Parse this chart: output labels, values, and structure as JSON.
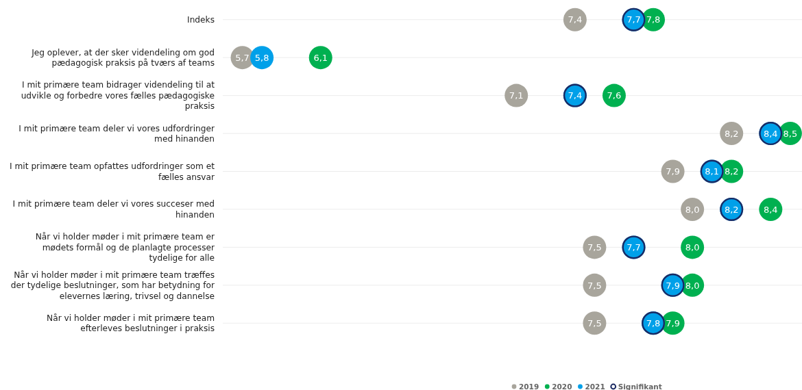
{
  "chart_data": {
    "type": "scatter",
    "orientation": "horizontal",
    "categories": [
      "Indeks",
      "Jeg oplever, at der sker videndeling om god pædagogisk praksis på tværs af teams",
      "I mit primære team bidrager videndeling til at udvikle og forbedre vores fælles pædagogiske praksis",
      "I mit primære team deler vi vores udfordringer med hinanden",
      "I mit primære team opfattes udfordringer som et fælles ansvar",
      "I mit primære team deler vi vores succeser med hinanden",
      "Når vi holder møder i mit primære team er mødets formål og de planlagte processer tydelige for alle",
      "Når vi holder møder i mit primære team træffes der tydelige beslutninger, som har betydning for elevernes læring, trivsel og dannelse",
      "Når vi holder møder i mit primære team efterleves beslutninger i praksis"
    ],
    "series": [
      {
        "name": "2019",
        "color": "#a8a59c",
        "values": [
          7.4,
          5.7,
          7.1,
          8.2,
          7.9,
          8.0,
          7.5,
          7.5,
          7.5
        ],
        "value_labels": [
          "7,4",
          "5,7",
          "7,1",
          "8,2",
          "7,9",
          "8,0",
          "7,5",
          "7,5",
          "7,5"
        ]
      },
      {
        "name": "2020",
        "color": "#00b050",
        "values": [
          7.8,
          6.1,
          7.6,
          8.5,
          8.2,
          8.4,
          8.0,
          8.0,
          7.9
        ],
        "value_labels": [
          "7,8",
          "6,1",
          "7,6",
          "8,5",
          "8,2",
          "8,4",
          "8,0",
          "8,0",
          "7,9"
        ]
      },
      {
        "name": "2021",
        "color": "#00a0e9",
        "values": [
          7.7,
          5.8,
          7.4,
          8.4,
          8.1,
          8.2,
          7.7,
          7.9,
          7.8
        ],
        "value_labels": [
          null,
          "5,8",
          null,
          null,
          null,
          null,
          null,
          null,
          null
        ]
      },
      {
        "name": "Signifikant",
        "color": "#1b2a63",
        "marker": "circle",
        "values": [
          7.7,
          null,
          7.4,
          8.4,
          8.1,
          8.2,
          7.7,
          7.9,
          7.8
        ],
        "value_labels": [
          "7,7",
          null,
          "7,4",
          "8,4",
          "8,1",
          "8,2",
          "7,7",
          "7,9",
          "7,8"
        ]
      }
    ],
    "xlim": [
      5.6,
      8.56
    ],
    "tick_labels": "y",
    "grid": "y",
    "legend": "bottom",
    "marker": "circle"
  }
}
